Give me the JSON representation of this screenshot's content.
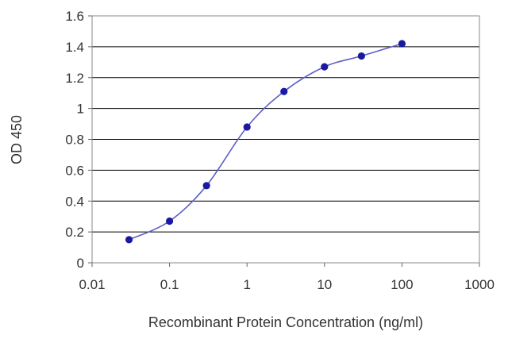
{
  "chart_data": {
    "type": "line",
    "xscale": "log",
    "xlabel": "Recombinant Protein Concentration (ng/ml)",
    "ylabel": "OD 450",
    "xlim": [
      0.01,
      1000
    ],
    "ylim": [
      0,
      1.6
    ],
    "xticks": [
      "0.01",
      "0.1",
      "1",
      "10",
      "100",
      "1000"
    ],
    "yticks": [
      "0",
      "0.2",
      "0.4",
      "0.6",
      "0.8",
      "1",
      "1.2",
      "1.4",
      "1.6"
    ],
    "grid": "horizontal",
    "series": [
      {
        "x": [
          0.03,
          0.1,
          0.3,
          1,
          3,
          10,
          30,
          100
        ],
        "y": [
          0.15,
          0.27,
          0.5,
          0.88,
          1.11,
          1.27,
          1.34,
          1.42
        ]
      }
    ],
    "colors": {
      "line": "#5b5fc7",
      "marker": "#1a1aa0",
      "grid": "#000000",
      "plot_bg": "#ffffff"
    }
  }
}
